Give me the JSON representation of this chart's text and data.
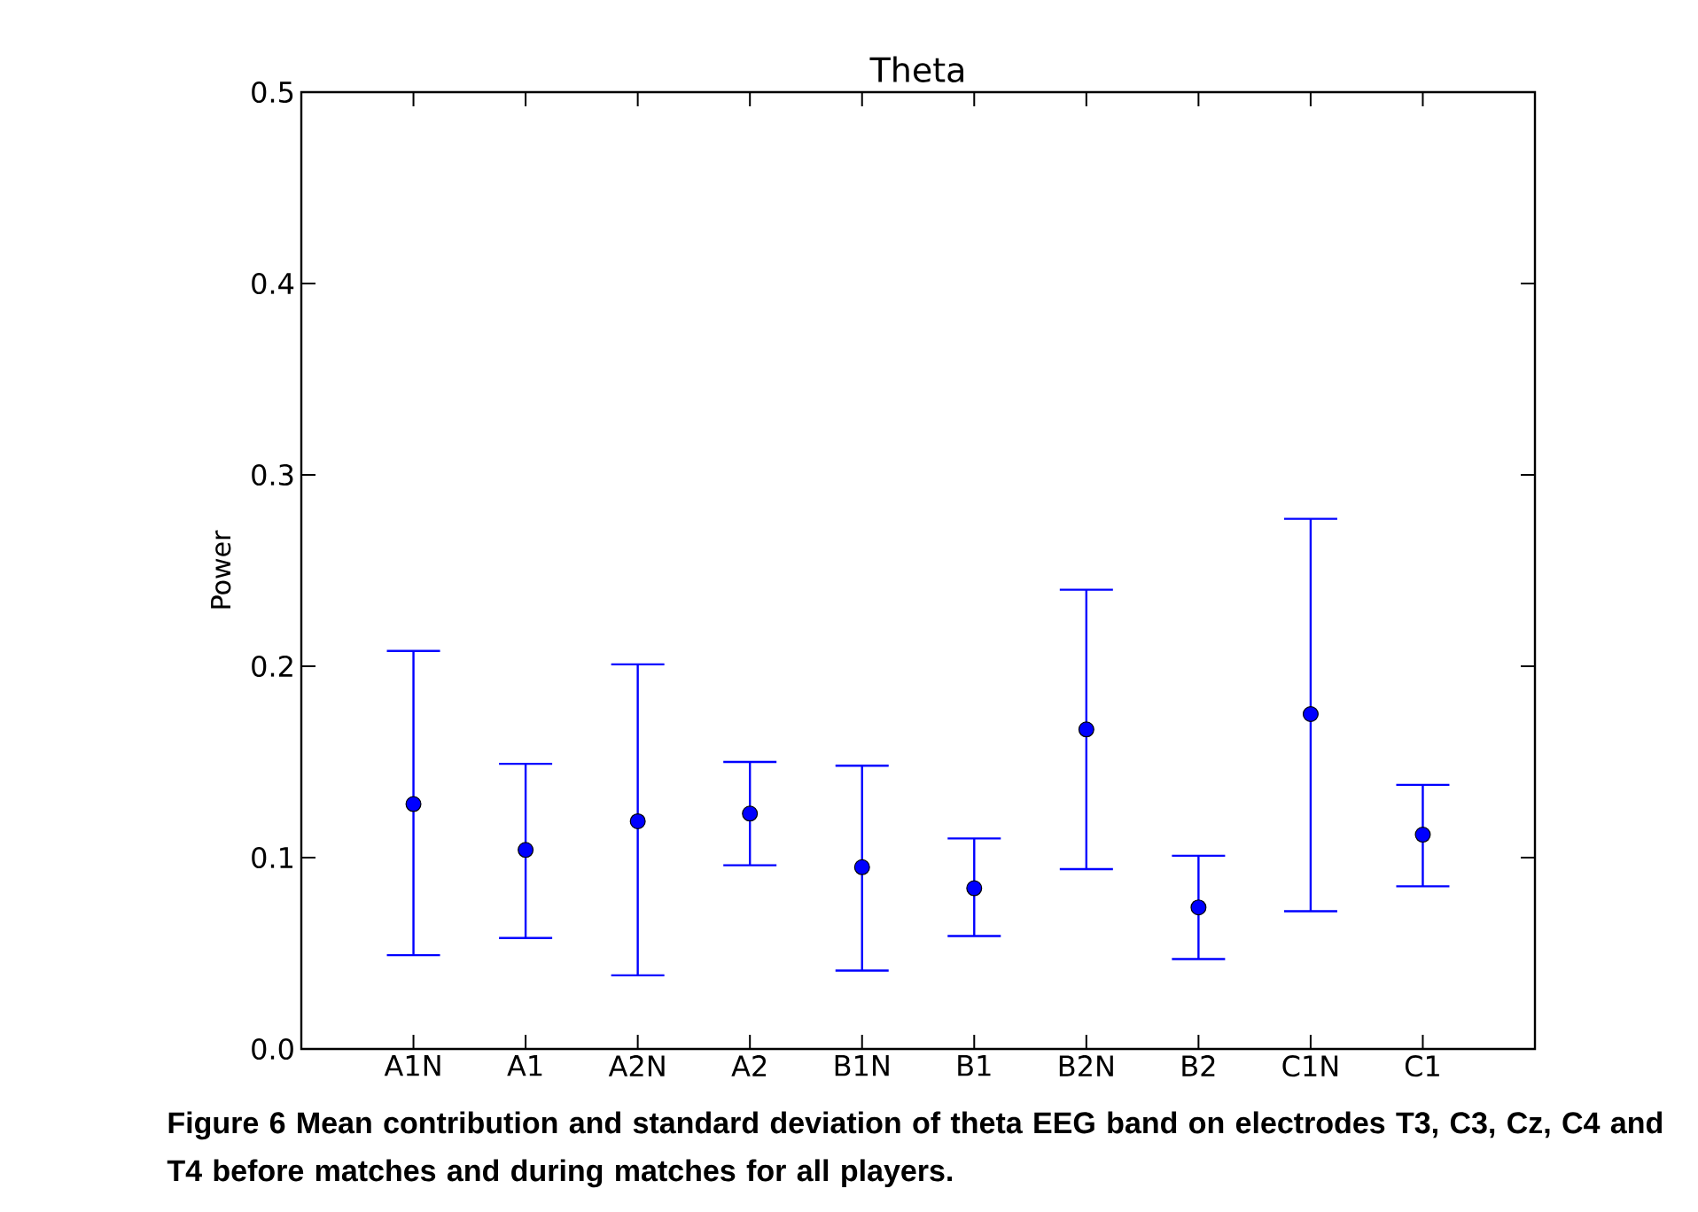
{
  "chart_data": {
    "type": "scatter",
    "title": "Theta",
    "ylabel": "Power",
    "categories": [
      "A1N",
      "A1",
      "A2N",
      "A2",
      "B1N",
      "B1",
      "B2N",
      "B2",
      "C1N",
      "C1"
    ],
    "values": [
      0.128,
      0.104,
      0.119,
      0.123,
      0.095,
      0.084,
      0.167,
      0.074,
      0.175,
      0.112
    ],
    "errors": [
      [
        0.049,
        0.208
      ],
      [
        0.058,
        0.149
      ],
      [
        0.0385,
        0.201
      ],
      [
        0.096,
        0.15
      ],
      [
        0.041,
        0.148
      ],
      [
        0.059,
        0.11
      ],
      [
        0.094,
        0.24
      ],
      [
        0.047,
        0.101
      ],
      [
        0.072,
        0.277
      ],
      [
        0.085,
        0.138
      ]
    ],
    "color": "#0000ff",
    "marker": "circle",
    "ylim": [
      0,
      0.5
    ],
    "yticks": [
      {
        "value": 0,
        "label": "0.0"
      },
      {
        "value": 0.1,
        "label": "0.1"
      },
      {
        "value": 0.2,
        "label": "0.2"
      },
      {
        "value": 0.3,
        "label": "0.3"
      },
      {
        "value": 0.4,
        "label": "0.4"
      },
      {
        "value": 0.5,
        "label": "0.5"
      }
    ],
    "annotations": [
      "Figure 6 Mean contribution and standard deviation of theta EEG band on electrodes T3, C3, Cz, C4 and T4 before matches and during matches for all players."
    ]
  }
}
